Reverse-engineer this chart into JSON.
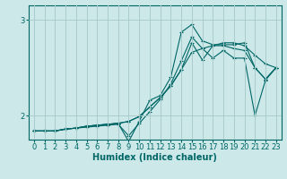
{
  "bg_color": "#cce8e8",
  "grid_color": "#aacccc",
  "line_color": "#006666",
  "marker_color": "#006666",
  "xlabel": "Humidex (Indice chaleur)",
  "xlim": [
    -0.5,
    23.5
  ],
  "ylim": [
    1.75,
    3.15
  ],
  "yticks": [
    2,
    3
  ],
  "xticks": [
    0,
    1,
    2,
    3,
    4,
    5,
    6,
    7,
    8,
    9,
    10,
    11,
    12,
    13,
    14,
    15,
    16,
    17,
    18,
    19,
    20,
    21,
    22,
    23
  ],
  "series": [
    [
      1.84,
      1.84,
      1.84,
      1.86,
      1.87,
      1.88,
      1.89,
      1.9,
      1.91,
      1.79,
      1.92,
      2.04,
      2.17,
      2.33,
      2.57,
      2.82,
      2.7,
      2.6,
      2.68,
      2.6,
      2.6,
      2.0,
      2.37,
      2.5
    ],
    [
      1.84,
      1.84,
      1.84,
      1.86,
      1.87,
      1.89,
      1.9,
      1.91,
      1.92,
      1.94,
      1.99,
      2.09,
      2.19,
      2.31,
      2.48,
      2.66,
      2.7,
      2.73,
      2.76,
      2.76,
      2.73,
      2.63,
      2.54,
      2.5
    ],
    [
      1.84,
      1.84,
      1.84,
      1.86,
      1.87,
      1.89,
      1.9,
      1.91,
      1.92,
      1.94,
      1.99,
      2.09,
      2.19,
      2.31,
      2.48,
      2.76,
      2.58,
      2.73,
      2.73,
      2.7,
      2.68,
      2.5,
      2.38,
      2.5
    ],
    [
      1.84,
      1.84,
      1.84,
      1.86,
      1.87,
      1.89,
      1.9,
      1.91,
      1.92,
      1.73,
      1.94,
      2.16,
      2.21,
      2.4,
      2.87,
      2.95,
      2.78,
      2.74,
      2.74,
      2.74,
      2.76,
      2.5,
      2.38,
      2.5
    ]
  ]
}
